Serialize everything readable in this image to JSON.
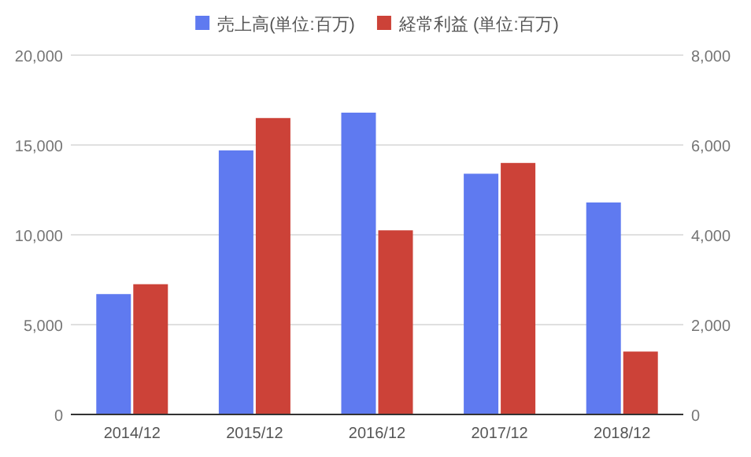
{
  "chart_data": {
    "type": "bar",
    "categories": [
      "2014/12",
      "2015/12",
      "2016/12",
      "2017/12",
      "2018/12"
    ],
    "series": [
      {
        "name": "売上高(単位:百万)",
        "color": "#5f7af0",
        "values": [
          6700,
          14700,
          16800,
          13400,
          11800
        ]
      },
      {
        "name": "経常利益 (単位:百万)",
        "color": "#cc4238",
        "values": [
          2900,
          6600,
          4100,
          5600,
          1400
        ],
        "axis": "y2"
      }
    ],
    "ylim": [
      0,
      20000
    ],
    "yticks": [
      {
        "value": 0,
        "label": "0"
      },
      {
        "value": 5000,
        "label": "5,000"
      },
      {
        "value": 10000,
        "label": "10,000"
      },
      {
        "value": 15000,
        "label": "15,000"
      },
      {
        "value": 20000,
        "label": "20,000"
      }
    ],
    "y2lim": [
      0,
      8000
    ],
    "y2ticks": [
      {
        "value": 0,
        "label": "0"
      },
      {
        "value": 2000,
        "label": "2,000"
      },
      {
        "value": 4000,
        "label": "4,000"
      },
      {
        "value": 6000,
        "label": "6,000"
      },
      {
        "value": 8000,
        "label": "8,000"
      }
    ],
    "grid": "y",
    "legend": "top"
  }
}
